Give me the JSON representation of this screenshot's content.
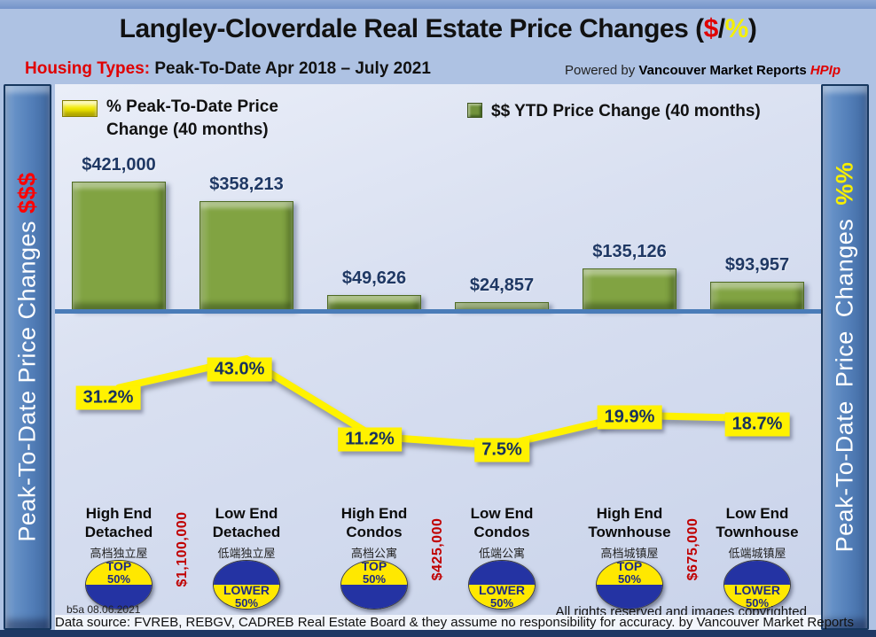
{
  "header": {
    "title": {
      "prefix": "Langley-Cloverdale Real Estate Price Changes (",
      "dollar": "$",
      "slash": "/",
      "percent": "%",
      "suffix": ")"
    },
    "subtitle_label": "Housing Types:",
    "subtitle_text": " Peak-To-Date Apr 2018 – July 2021",
    "powered_by": "Powered by ",
    "brand": "Vancouver Market Reports ",
    "brand_suffix": "HPIp"
  },
  "sidebars": {
    "left_text": "Peak-To-Date Price Changes ",
    "left_accent": "$$$",
    "right_text": "Peak-To-Date Price Changes ",
    "right_accent": "%%"
  },
  "legend": {
    "pct_label": "% Peak-To-Date Price Change (40 months)",
    "dollar_label": "$$ YTD Price Change (40 months)"
  },
  "chart_data": {
    "type": "bar+line",
    "categories": [
      {
        "line1": "High End",
        "line2": "Detached",
        "zh": "高档独立屋"
      },
      {
        "line1": "Low End",
        "line2": "Detached",
        "zh": "低端独立屋"
      },
      {
        "line1": "High End",
        "line2": "Condos",
        "zh": "高档公寓"
      },
      {
        "line1": "Low End",
        "line2": "Condos",
        "zh": "低端公寓"
      },
      {
        "line1": "High End",
        "line2": "Townhouse",
        "zh": "高档城镇屋"
      },
      {
        "line1": "Low End",
        "line2": "Townhouse",
        "zh": "低端城镇屋"
      }
    ],
    "series": [
      {
        "name": "$$ YTD Price Change (40 months)",
        "type": "bar",
        "values": [
          421000,
          358213,
          49626,
          24857,
          135126,
          93957
        ],
        "labels": [
          "$421,000",
          "$358,213",
          "$49,626",
          "$24,857",
          "$135,126",
          "$93,957"
        ]
      },
      {
        "name": "% Peak-To-Date Price Change (40 months)",
        "type": "line",
        "values": [
          31.2,
          43.0,
          11.2,
          7.5,
          19.9,
          18.7
        ],
        "labels": [
          "31.2%",
          "43.0%",
          "11.2%",
          "7.5%",
          "19.9%",
          "18.7%"
        ]
      }
    ],
    "badges": [
      {
        "line1": "TOP",
        "line2": "50%",
        "variant": "top"
      },
      {
        "line1": "LOWER",
        "line2": "50%",
        "variant": "lower"
      },
      {
        "line1": "TOP",
        "line2": "50%",
        "variant": "top"
      },
      {
        "line1": "LOWER",
        "line2": "50%",
        "variant": "lower"
      },
      {
        "line1": "TOP",
        "line2": "50%",
        "variant": "top"
      },
      {
        "line1": "LOWER",
        "line2": "50%",
        "variant": "lower"
      }
    ],
    "price_markers": [
      {
        "text": "$1,100,000",
        "gap_index": 1
      },
      {
        "text": "$425,000",
        "gap_index": 3
      },
      {
        "text": "$675,000",
        "gap_index": 5
      }
    ],
    "colors": {
      "bar_green": "#81a342",
      "line_yellow": "#fff200",
      "value_navy": "#1f3864",
      "accent_red": "#c00000",
      "badge_navy": "#2433a3",
      "badge_yellow": "#ffe800",
      "sidebar_blue": "#527eb8"
    },
    "legend_position": "top",
    "grid": false
  },
  "footer": {
    "stamp": "b5a 08.06.2021",
    "rights": "All rights reserved and  images copyrighted",
    "datasource": "Data source: FVREB, REBGV, CADREB Real Estate Board & they assume no responsibility for accuracy. by Vancouver Market Reports"
  }
}
